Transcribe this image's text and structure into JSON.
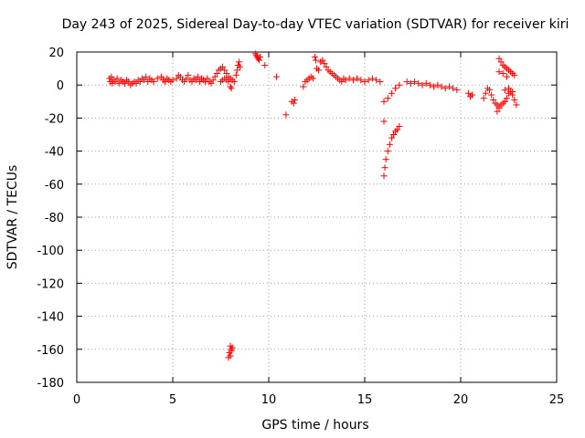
{
  "chart_data": {
    "type": "scatter",
    "title": "Day 243 of 2025, Sidereal Day-to-day VTEC variation (SDTVAR) for receiver kiri",
    "xlabel": "GPS time / hours",
    "ylabel": "SDTVAR / TECUs",
    "xlim": [
      0,
      25
    ],
    "ylim": [
      -180,
      20
    ],
    "xticks": [
      0,
      5,
      10,
      15,
      20,
      25
    ],
    "yticks": [
      20,
      0,
      -20,
      -40,
      -60,
      -80,
      -100,
      -120,
      -140,
      -160,
      -180
    ],
    "grid": true,
    "marker": "+",
    "color": "#ff0000",
    "series": [
      {
        "points": [
          [
            1.7,
            4
          ],
          [
            1.75,
            2
          ],
          [
            1.8,
            5
          ],
          [
            1.85,
            1
          ],
          [
            1.9,
            3
          ],
          [
            2.0,
            2
          ],
          [
            2.1,
            4
          ],
          [
            2.2,
            1
          ],
          [
            2.3,
            3
          ],
          [
            2.4,
            2
          ],
          [
            2.5,
            1
          ],
          [
            2.6,
            3
          ],
          [
            2.7,
            2
          ],
          [
            2.8,
            0
          ],
          [
            2.9,
            1
          ],
          [
            3.0,
            2
          ],
          [
            3.1,
            1
          ],
          [
            3.2,
            3
          ],
          [
            3.3,
            2
          ],
          [
            3.4,
            4
          ],
          [
            3.5,
            3
          ],
          [
            3.6,
            5
          ],
          [
            3.7,
            2
          ],
          [
            3.8,
            4
          ],
          [
            3.9,
            3
          ],
          [
            4.0,
            2
          ],
          [
            4.2,
            4
          ],
          [
            4.4,
            5
          ],
          [
            4.5,
            3
          ],
          [
            4.6,
            2
          ],
          [
            4.7,
            4
          ],
          [
            4.8,
            3
          ],
          [
            4.9,
            2
          ],
          [
            5.0,
            3
          ],
          [
            5.2,
            4
          ],
          [
            5.3,
            6
          ],
          [
            5.4,
            5
          ],
          [
            5.5,
            3
          ],
          [
            5.6,
            2
          ],
          [
            5.7,
            4
          ],
          [
            5.8,
            6
          ],
          [
            5.9,
            3
          ],
          [
            6.0,
            2
          ],
          [
            6.1,
            4
          ],
          [
            6.2,
            3
          ],
          [
            6.3,
            5
          ],
          [
            6.4,
            2
          ],
          [
            6.5,
            4
          ],
          [
            6.6,
            3
          ],
          [
            6.7,
            2
          ],
          [
            6.8,
            4
          ],
          [
            6.9,
            2
          ],
          [
            7.0,
            1
          ],
          [
            7.1,
            3
          ],
          [
            7.2,
            5
          ],
          [
            7.3,
            7
          ],
          [
            7.4,
            9
          ],
          [
            7.5,
            10
          ],
          [
            7.6,
            11
          ],
          [
            7.7,
            9
          ],
          [
            7.8,
            7
          ],
          [
            7.9,
            5
          ],
          [
            8.0,
            4
          ],
          [
            8.1,
            3
          ],
          [
            8.2,
            2
          ],
          [
            8.3,
            6
          ],
          [
            8.35,
            9
          ],
          [
            8.4,
            12
          ],
          [
            8.45,
            14
          ],
          [
            8.5,
            11
          ],
          [
            7.5,
            2
          ],
          [
            7.6,
            3
          ],
          [
            7.7,
            4
          ],
          [
            7.8,
            3
          ],
          [
            7.9,
            2
          ],
          [
            8.0,
            -1
          ],
          [
            8.05,
            -2
          ],
          [
            8.0,
            -158
          ],
          [
            8.05,
            -160
          ],
          [
            8.1,
            -159
          ],
          [
            7.95,
            -162
          ],
          [
            8.0,
            -164
          ],
          [
            7.9,
            -165
          ],
          [
            8.05,
            -161
          ],
          [
            9.3,
            19
          ],
          [
            9.35,
            18
          ],
          [
            9.4,
            17
          ],
          [
            9.45,
            16
          ],
          [
            9.5,
            15
          ],
          [
            9.55,
            17
          ],
          [
            9.8,
            12
          ],
          [
            10.4,
            5
          ],
          [
            10.9,
            -18
          ],
          [
            11.2,
            -10
          ],
          [
            11.3,
            -11
          ],
          [
            11.35,
            -9
          ],
          [
            11.8,
            -1
          ],
          [
            11.9,
            2
          ],
          [
            12.0,
            3
          ],
          [
            12.1,
            4
          ],
          [
            12.2,
            5
          ],
          [
            12.3,
            4
          ],
          [
            12.4,
            17
          ],
          [
            12.45,
            15
          ],
          [
            12.5,
            10
          ],
          [
            12.6,
            9
          ],
          [
            12.7,
            14
          ],
          [
            12.8,
            15
          ],
          [
            12.9,
            13
          ],
          [
            13.0,
            11
          ],
          [
            13.1,
            9
          ],
          [
            13.2,
            8
          ],
          [
            13.3,
            7
          ],
          [
            13.4,
            6
          ],
          [
            13.5,
            5
          ],
          [
            13.6,
            4
          ],
          [
            13.7,
            3
          ],
          [
            13.8,
            2
          ],
          [
            13.9,
            4
          ],
          [
            14.0,
            3
          ],
          [
            14.2,
            4
          ],
          [
            14.4,
            3
          ],
          [
            14.6,
            4
          ],
          [
            14.8,
            3
          ],
          [
            15.0,
            2
          ],
          [
            15.2,
            3
          ],
          [
            15.4,
            4
          ],
          [
            15.6,
            3
          ],
          [
            15.8,
            2
          ],
          [
            16.0,
            -22
          ],
          [
            16.0,
            -55
          ],
          [
            16.05,
            -50
          ],
          [
            16.1,
            -45
          ],
          [
            16.2,
            -40
          ],
          [
            16.3,
            -36
          ],
          [
            16.4,
            -32
          ],
          [
            16.5,
            -30
          ],
          [
            16.6,
            -28
          ],
          [
            16.7,
            -27
          ],
          [
            16.8,
            -25
          ],
          [
            16.0,
            -10
          ],
          [
            16.2,
            -8
          ],
          [
            16.4,
            -5
          ],
          [
            16.6,
            -2
          ],
          [
            16.8,
            0
          ],
          [
            17.2,
            2
          ],
          [
            17.4,
            1
          ],
          [
            17.6,
            2
          ],
          [
            17.8,
            1
          ],
          [
            18.0,
            0
          ],
          [
            18.2,
            1
          ],
          [
            18.4,
            0
          ],
          [
            18.6,
            -1
          ],
          [
            18.8,
            0
          ],
          [
            19.0,
            -1
          ],
          [
            19.2,
            -2
          ],
          [
            19.4,
            -1
          ],
          [
            19.6,
            -2
          ],
          [
            19.8,
            -3
          ],
          [
            20.4,
            -5
          ],
          [
            20.5,
            -7
          ],
          [
            20.6,
            -6
          ],
          [
            21.2,
            -8
          ],
          [
            21.3,
            -5
          ],
          [
            21.4,
            -2
          ],
          [
            21.5,
            -3
          ],
          [
            21.6,
            -6
          ],
          [
            21.7,
            -9
          ],
          [
            21.8,
            -11
          ],
          [
            21.9,
            -12
          ],
          [
            22.0,
            -13
          ],
          [
            22.1,
            -12
          ],
          [
            22.2,
            -11
          ],
          [
            22.3,
            -10
          ],
          [
            22.4,
            -8
          ],
          [
            22.5,
            -5
          ],
          [
            22.6,
            -4
          ],
          [
            22.7,
            -6
          ],
          [
            22.8,
            -9
          ],
          [
            22.9,
            -12
          ],
          [
            22.0,
            16
          ],
          [
            22.1,
            14
          ],
          [
            22.2,
            12
          ],
          [
            22.3,
            11
          ],
          [
            22.4,
            10
          ],
          [
            22.5,
            9
          ],
          [
            22.6,
            8
          ],
          [
            22.7,
            7
          ],
          [
            22.8,
            6
          ],
          [
            22.0,
            8
          ],
          [
            22.2,
            7
          ],
          [
            22.4,
            5
          ],
          [
            21.9,
            -16
          ],
          [
            22.0,
            -14
          ],
          [
            22.3,
            -3
          ],
          [
            22.5,
            -2
          ],
          [
            22.7,
            -4
          ]
        ]
      }
    ]
  }
}
